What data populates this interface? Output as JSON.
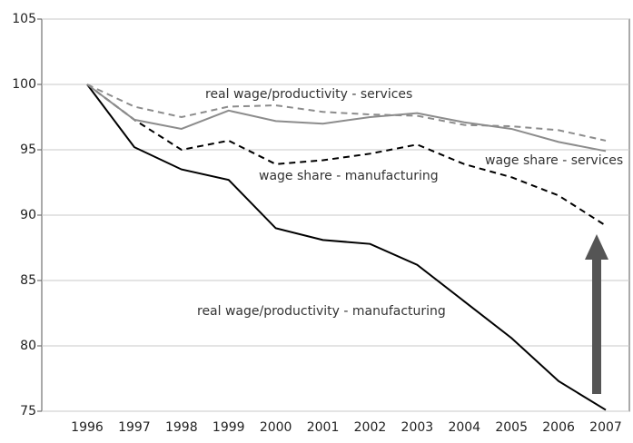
{
  "chart_data": {
    "type": "line",
    "categories": [
      "1996",
      "1997",
      "1998",
      "1999",
      "2000",
      "2001",
      "2002",
      "2003",
      "2004",
      "2005",
      "2006",
      "2007"
    ],
    "series": [
      {
        "name": "real wage/productivity - manufacturing",
        "color": "#000000",
        "dash": false,
        "values": [
          100,
          95.2,
          93.5,
          92.7,
          89.0,
          88.1,
          87.8,
          86.2,
          83.4,
          80.6,
          77.3,
          75.1
        ]
      },
      {
        "name": "wage share  - manufacturing",
        "color": "#000000",
        "dash": true,
        "values": [
          100,
          97.3,
          95.0,
          95.7,
          93.9,
          94.2,
          94.7,
          95.4,
          93.9,
          92.9,
          91.5,
          89.2
        ]
      },
      {
        "name": "real wage/productivity - services",
        "color": "#8c8c8c",
        "dash": true,
        "values": [
          100,
          98.3,
          97.5,
          98.3,
          98.4,
          97.9,
          97.7,
          97.6,
          96.9,
          96.8,
          96.5,
          95.7
        ]
      },
      {
        "name": "wage share - services",
        "color": "#8c8c8c",
        "dash": false,
        "values": [
          100,
          97.3,
          96.6,
          98.0,
          97.2,
          97.0,
          97.5,
          97.8,
          97.1,
          96.6,
          95.6,
          94.9
        ]
      }
    ],
    "ylim": [
      75,
      105
    ],
    "yticks": [
      75,
      80,
      85,
      90,
      95,
      100,
      105
    ],
    "grid": true
  }
}
